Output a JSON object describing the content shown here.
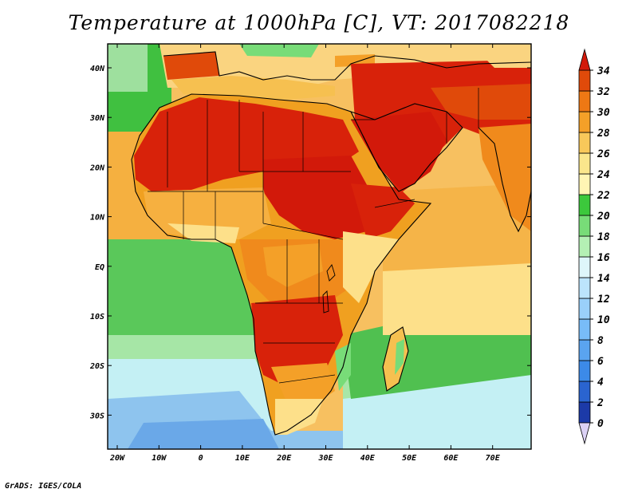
{
  "title": "Temperature at 1000hPa [C], VT: 2017082218",
  "footer": "GrADS: IGES/COLA",
  "colors": {
    "ocean_cold": "#8ec8f0",
    "ocean_cool": "#c8f0f8",
    "ocean_warm": "#64c864",
    "land_base": "#ffd080",
    "land_hot": "#dc2008",
    "land_very_hot": "#e04010",
    "land_warm": "#f0a020"
  },
  "map": {
    "x_ticks": [
      "20W",
      "10W",
      "0",
      "10E",
      "20E",
      "30E",
      "40E",
      "50E",
      "60E",
      "70E"
    ],
    "y_ticks": [
      "40N",
      "30N",
      "20N",
      "10N",
      "EQ",
      "10S",
      "20S",
      "30S"
    ]
  },
  "colorbar": {
    "levels": [
      "0",
      "2",
      "4",
      "6",
      "8",
      "10",
      "12",
      "14",
      "16",
      "18",
      "20",
      "22",
      "24",
      "26",
      "28",
      "30",
      "32",
      "34"
    ],
    "colors": [
      "#0a1a6e",
      "#1c3aa8",
      "#2a64d0",
      "#3c8ae8",
      "#5aa4f0",
      "#78bcf8",
      "#9ad0fa",
      "#bce4fc",
      "#def6fa",
      "#b4f0b4",
      "#78dc78",
      "#3cc83c",
      "#fff5b4",
      "#fae68c",
      "#f8c85a",
      "#f4a028",
      "#ee7814",
      "#e04a0a",
      "#d2190a"
    ]
  }
}
